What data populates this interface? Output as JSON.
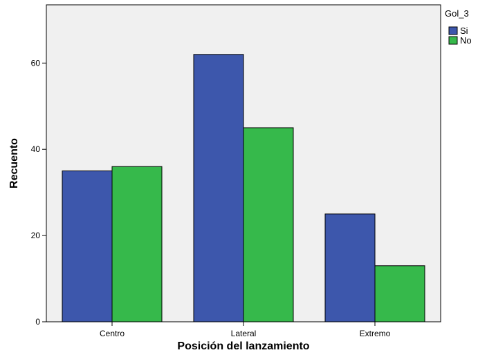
{
  "chart_data": {
    "type": "bar",
    "title": "",
    "xlabel": "Posición del lanzamiento",
    "ylabel": "Recuento",
    "categories": [
      "Centro",
      "Lateral",
      "Extremo"
    ],
    "series": [
      {
        "name": "Si",
        "values": [
          35,
          62,
          25
        ],
        "color": "#3D57AC"
      },
      {
        "name": "No",
        "values": [
          36,
          45,
          13
        ],
        "color": "#36B94B"
      }
    ],
    "ylim": [
      0,
      73.5
    ],
    "yticks": [
      0,
      20,
      40,
      60
    ],
    "grid": false,
    "legend": {
      "title": "Gol_3",
      "placement": "top-right"
    },
    "plot_background": "#F0F0F0"
  }
}
